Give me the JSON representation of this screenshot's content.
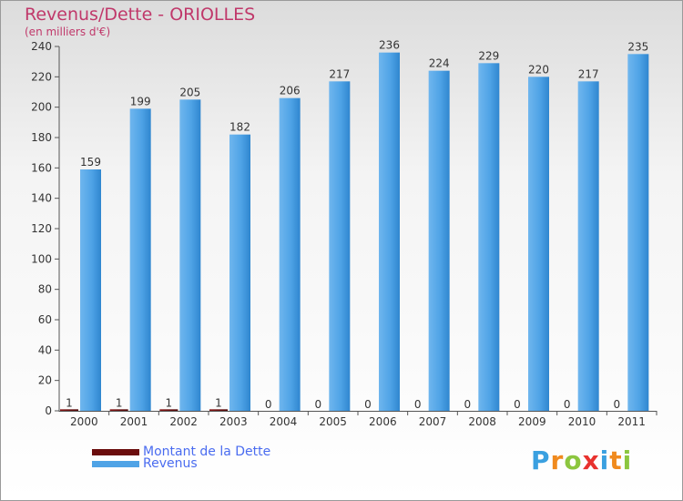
{
  "chart_data": {
    "type": "bar",
    "title": "Revenus/Dette - ORIOLLES",
    "subtitle": "(en milliers d'€)",
    "categories": [
      "2000",
      "2001",
      "2002",
      "2003",
      "2004",
      "2005",
      "2006",
      "2007",
      "2008",
      "2009",
      "2010",
      "2011"
    ],
    "series": [
      {
        "name": "Montant de la Dette",
        "color": "#6b0d0d",
        "values": [
          1,
          1,
          1,
          1,
          0,
          0,
          0,
          0,
          0,
          0,
          0,
          0
        ]
      },
      {
        "name": "Revenus",
        "color": "#4fa3e6",
        "values": [
          159,
          199,
          205,
          182,
          206,
          217,
          236,
          224,
          229,
          220,
          217,
          235
        ]
      }
    ],
    "ylim": [
      0,
      240
    ],
    "yticks": [
      0,
      20,
      40,
      60,
      80,
      100,
      120,
      140,
      160,
      180,
      200,
      220,
      240
    ],
    "grid": false,
    "legend": "bottom-left"
  },
  "logo": {
    "text": "Proxiti"
  }
}
